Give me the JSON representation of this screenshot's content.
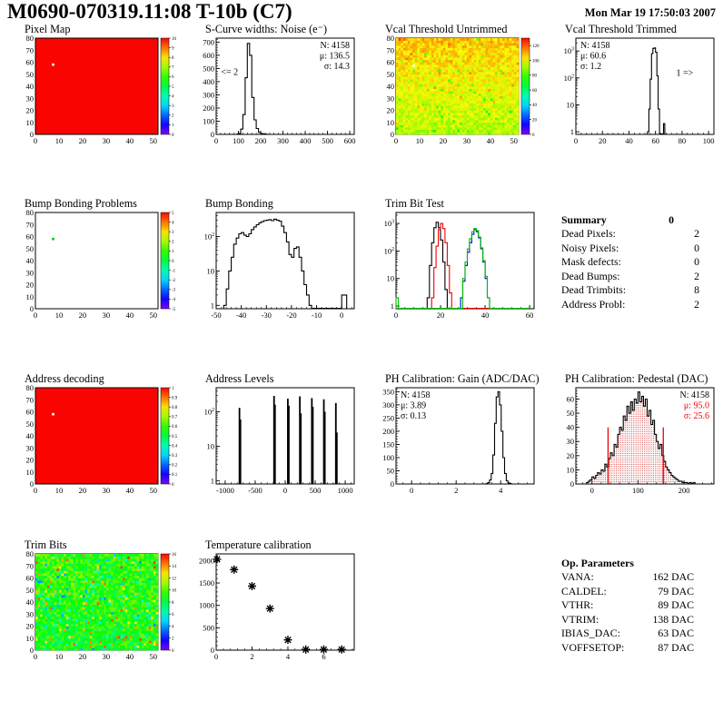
{
  "header": {
    "title": "M0690-070319.11:08 T-10b (C7)",
    "date": "Mon Mar 19 17:50:03 2007"
  },
  "summary": {
    "title": "Summary",
    "value": "0",
    "rows": [
      {
        "label": "Dead Pixels:",
        "value": "2"
      },
      {
        "label": "Noisy Pixels:",
        "value": "0"
      },
      {
        "label": "Mask defects:",
        "value": "0"
      },
      {
        "label": "Dead Bumps:",
        "value": "2"
      },
      {
        "label": "Dead Trimbits:",
        "value": "8"
      },
      {
        "label": "Address Probl:",
        "value": "2"
      }
    ]
  },
  "op_parameters": {
    "title": "Op. Parameters",
    "rows": [
      {
        "label": "VANA:",
        "value": "162 DAC"
      },
      {
        "label": "CALDEL:",
        "value": "79 DAC"
      },
      {
        "label": "VTHR:",
        "value": "89 DAC"
      },
      {
        "label": "VTRIM:",
        "value": "138 DAC"
      },
      {
        "label": "IBIAS_DAC:",
        "value": "63 DAC"
      },
      {
        "label": "VOFFSETOP:",
        "value": "87 DAC"
      }
    ]
  },
  "chart_data": [
    {
      "id": "pixel-map",
      "type": "heatmap",
      "title": "Pixel Map",
      "xlim": [
        0,
        52
      ],
      "xticks": [
        0,
        10,
        20,
        30,
        40,
        50
      ],
      "ylim": [
        0,
        80
      ],
      "yticks": [
        0,
        10,
        20,
        30,
        40,
        50,
        60,
        70,
        80
      ],
      "zlim": [
        0,
        10
      ],
      "solid_color": "#f90400",
      "dots": [
        {
          "x": 7,
          "y": 57,
          "color": "#ffffff"
        }
      ],
      "colorbar": {
        "min": 0,
        "max": 10,
        "labels": [
          [
            0,
            "0"
          ],
          [
            1,
            "1"
          ],
          [
            2,
            "2"
          ],
          [
            3,
            "3"
          ],
          [
            4,
            "4"
          ],
          [
            5,
            "5"
          ],
          [
            6,
            "6"
          ],
          [
            7,
            "7"
          ],
          [
            8,
            "8"
          ],
          [
            9,
            "9"
          ],
          [
            10,
            "10"
          ]
        ]
      }
    },
    {
      "id": "scurve-noise",
      "type": "hist",
      "title": "S-Curve widths: Noise (e⁻)",
      "xlim": [
        0,
        620
      ],
      "xticks": [
        0,
        100,
        200,
        300,
        400,
        500,
        600
      ],
      "ylim": [
        0,
        730
      ],
      "yticks": [
        0,
        100,
        200,
        300,
        400,
        500,
        600,
        700
      ],
      "series": [
        {
          "color": "#000000",
          "start": 90,
          "binWidth": 10,
          "counts": [
            2,
            6,
            40,
            150,
            430,
            690,
            600,
            280,
            110,
            45,
            15,
            6,
            3,
            2
          ]
        }
      ],
      "stats": {
        "side": "right",
        "lines": [
          {
            "t": "N: 4158",
            "c": "#000000"
          },
          {
            "t": "μ: 136.5",
            "c": "#000000"
          },
          {
            "t": "σ: 14.3",
            "c": "#000000"
          }
        ]
      },
      "annotations": [
        {
          "t": "<= 2",
          "x": 60,
          "y": 450
        }
      ]
    },
    {
      "id": "vcal-untrimmed",
      "type": "heatmap",
      "title": "Vcal Threshold Untrimmed",
      "xlim": [
        0,
        52
      ],
      "xticks": [
        0,
        10,
        20,
        30,
        40,
        50
      ],
      "ylim": [
        0,
        80
      ],
      "yticks": [
        0,
        10,
        20,
        30,
        40,
        50,
        60,
        70,
        80
      ],
      "zlim": [
        0,
        130
      ],
      "noise": {
        "seed": 42,
        "cols": 52,
        "rows": 40,
        "base": 92,
        "grad": 16,
        "amp": 14,
        "outlier_p": 0.03,
        "outlier_lo": -18,
        "outlier_hi": 8
      },
      "dots": [
        {
          "x": 7,
          "y": 56,
          "color": "#ffffff"
        }
      ],
      "colorbar": {
        "min": 0,
        "max": 130,
        "labels": [
          [
            0,
            "0"
          ],
          [
            20,
            "20"
          ],
          [
            40,
            "40"
          ],
          [
            60,
            "60"
          ],
          [
            80,
            "80"
          ],
          [
            100,
            "100"
          ],
          [
            120,
            "120"
          ]
        ]
      }
    },
    {
      "id": "vcal-trimmed",
      "type": "hist",
      "title": "Vcal Threshold Trimmed",
      "xlim": [
        0,
        104
      ],
      "xticks": [
        0,
        20,
        40,
        60,
        80,
        100
      ],
      "ylog": true,
      "ylim": [
        0.8,
        3000
      ],
      "ydecades": [
        1,
        10,
        100,
        1000
      ],
      "series": [
        {
          "color": "#000000",
          "start": 54,
          "binWidth": 1,
          "counts": [
            1,
            7,
            90,
            800,
            1250,
            1300,
            900,
            120,
            7,
            0,
            0,
            0,
            2
          ]
        }
      ],
      "stats": {
        "side": "left",
        "lines": [
          {
            "t": "N: 4158",
            "c": "#000000"
          },
          {
            "t": "μ: 60.6",
            "c": "#000000"
          },
          {
            "t": "σ:  1.2",
            "c": "#000000"
          }
        ]
      },
      "annotations": [
        {
          "t": "1 =>",
          "x": 82,
          "y": 120
        }
      ]
    },
    {
      "id": "bump-bonding-problems",
      "type": "heatmap",
      "title": "Bump Bonding Problems",
      "xlim": [
        0,
        52
      ],
      "xticks": [
        0,
        10,
        20,
        30,
        40,
        50
      ],
      "ylim": [
        0,
        80
      ],
      "yticks": [
        0,
        10,
        20,
        30,
        40,
        50,
        60,
        70,
        80
      ],
      "zlim": [
        -5,
        5
      ],
      "solid_color": "#ffffff",
      "dots": [
        {
          "x": 7,
          "y": 57,
          "color": "#00c400"
        }
      ],
      "colorbar": {
        "min": -5,
        "max": 5,
        "labels": [
          [
            -5,
            "-5"
          ],
          [
            -4,
            "-4"
          ],
          [
            -3,
            "-3"
          ],
          [
            -2,
            "-2"
          ],
          [
            -1,
            "-1"
          ],
          [
            0,
            "0"
          ],
          [
            1,
            "1"
          ],
          [
            2,
            "2"
          ],
          [
            3,
            "3"
          ],
          [
            4,
            "4"
          ],
          [
            5,
            "5"
          ]
        ]
      }
    },
    {
      "id": "bump-bonding",
      "type": "hist",
      "title": "Bump Bonding",
      "xlim": [
        -50,
        5
      ],
      "xticks": [
        -50,
        -40,
        -30,
        -20,
        -10,
        0
      ],
      "ylog": true,
      "ylim": [
        0.8,
        500
      ],
      "ydecades": [
        1,
        10,
        100
      ],
      "series": [
        {
          "color": "#000000",
          "start": -47,
          "binWidth": 1,
          "counts": [
            1,
            3,
            10,
            25,
            60,
            90,
            120,
            130,
            110,
            100,
            120,
            160,
            190,
            220,
            250,
            270,
            290,
            300,
            310,
            290,
            320,
            300,
            280,
            200,
            130,
            70,
            30,
            25,
            45,
            50,
            25,
            10,
            4,
            2,
            1,
            0,
            0,
            0,
            0,
            0,
            0,
            0,
            0,
            0,
            0,
            0,
            0,
            2,
            2
          ]
        }
      ]
    },
    {
      "id": "trim-bit-test",
      "type": "hist",
      "title": "Trim Bit Test",
      "xlim": [
        0,
        62
      ],
      "xticks": [
        0,
        20,
        40,
        60
      ],
      "ylog": true,
      "ylim": [
        0.8,
        2500
      ],
      "ydecades": [
        1,
        10,
        100,
        1000
      ],
      "series": [
        {
          "color": "#000000",
          "start": 14,
          "binWidth": 1,
          "counts": [
            2,
            30,
            200,
            700,
            1100,
            700,
            250,
            40,
            4
          ]
        },
        {
          "color": "#ee0000",
          "start": 16,
          "binWidth": 1,
          "counts": [
            2,
            25,
            150,
            600,
            1000,
            650,
            200,
            30,
            3,
            0,
            0,
            0,
            0,
            0,
            0,
            0,
            0,
            0,
            0,
            0,
            0,
            0,
            0,
            0,
            0,
            0,
            0,
            0,
            0,
            0,
            0,
            0,
            0,
            0,
            0,
            0,
            0,
            0,
            0,
            0,
            0,
            0,
            0,
            0
          ]
        },
        {
          "color": "#0000ee",
          "start": 29,
          "binWidth": 1,
          "counts": [
            2,
            8,
            30,
            90,
            200,
            400,
            600,
            500,
            300,
            120,
            40,
            10,
            2
          ]
        },
        {
          "color": "#00bb00",
          "start": 0,
          "binWidth": 1,
          "counts": [
            2,
            0,
            0,
            0,
            0,
            0,
            0,
            0,
            0,
            0,
            0,
            0,
            0,
            0,
            0,
            0,
            0,
            0,
            0,
            0,
            0,
            0,
            0,
            0,
            0,
            0,
            0,
            0,
            0,
            0,
            10,
            40,
            120,
            280,
            500,
            650,
            550,
            320,
            130,
            45,
            12,
            2,
            0,
            0,
            0,
            0,
            0,
            0,
            0,
            0,
            0,
            0,
            0,
            0,
            0,
            0,
            0,
            0,
            0,
            0
          ]
        }
      ]
    },
    {
      "id": "address-decoding",
      "type": "heatmap",
      "title": "Address decoding",
      "xlim": [
        0,
        52
      ],
      "xticks": [
        0,
        10,
        20,
        30,
        40,
        50
      ],
      "ylim": [
        0,
        80
      ],
      "yticks": [
        0,
        10,
        20,
        30,
        40,
        50,
        60,
        70,
        80
      ],
      "zlim": [
        0,
        1
      ],
      "solid_color": "#f90400",
      "dots": [
        {
          "x": 7,
          "y": 57,
          "color": "#ffffff"
        }
      ],
      "colorbar": {
        "min": 0,
        "max": 1,
        "labels": [
          [
            0,
            "0"
          ],
          [
            0.1,
            "0.1"
          ],
          [
            0.2,
            "0.2"
          ],
          [
            0.3,
            "0.3"
          ],
          [
            0.4,
            "0.4"
          ],
          [
            0.5,
            "0.5"
          ],
          [
            0.6,
            "0.6"
          ],
          [
            0.7,
            "0.7"
          ],
          [
            0.8,
            "0.8"
          ],
          [
            0.9,
            "0.9"
          ],
          [
            1,
            "1"
          ]
        ]
      }
    },
    {
      "id": "address-levels",
      "type": "bars",
      "title": "Address Levels",
      "xlim": [
        -1150,
        1150
      ],
      "xticks": [
        -1000,
        -500,
        0,
        500,
        1000
      ],
      "ylog": true,
      "ylim": [
        0.8,
        500
      ],
      "ydecades": [
        1,
        10,
        100
      ],
      "bars": [
        [
          -762,
          130
        ],
        [
          -746,
          60
        ],
        [
          -186,
          290
        ],
        [
          -170,
          160
        ],
        [
          44,
          240
        ],
        [
          60,
          150
        ],
        [
          244,
          280
        ],
        [
          260,
          90
        ],
        [
          444,
          250
        ],
        [
          460,
          140
        ],
        [
          644,
          230
        ],
        [
          660,
          100
        ],
        [
          844,
          180
        ],
        [
          860,
          25
        ]
      ]
    },
    {
      "id": "ph-gain",
      "type": "hist",
      "title": "PH Calibration: Gain (ADC/DAC)",
      "xlim": [
        -0.7,
        5.5
      ],
      "xticks": [
        0,
        2,
        4
      ],
      "ylim": [
        0,
        365
      ],
      "yticks": [
        0,
        50,
        100,
        150,
        200,
        250,
        300,
        350
      ],
      "series": [
        {
          "color": "#000000",
          "start": 3.35,
          "binWidth": 0.075,
          "counts": [
            2,
            5,
            15,
            40,
            110,
            230,
            330,
            350,
            300,
            200,
            100,
            40,
            12,
            4,
            2
          ]
        }
      ],
      "stats": {
        "side": "left",
        "lines": [
          {
            "t": "N: 4158",
            "c": "#000000"
          },
          {
            "t": "μ: 3.89",
            "c": "#000000"
          },
          {
            "t": "σ: 0.13",
            "c": "#000000"
          }
        ]
      }
    },
    {
      "id": "ph-pedestal",
      "type": "hist",
      "title": "PH Calibration: Pedestal (DAC)",
      "xlim": [
        -35,
        265
      ],
      "xticks": [
        0,
        100,
        200
      ],
      "ylim": [
        0,
        68
      ],
      "yticks": [
        0,
        10,
        20,
        30,
        40,
        50,
        60
      ],
      "fill": "dots",
      "series": [
        {
          "color": "#000000",
          "start": -12,
          "binWidth": 4,
          "counts": [
            1,
            2,
            3,
            5,
            4,
            6,
            8,
            7,
            10,
            9,
            14,
            12,
            18,
            22,
            20,
            28,
            26,
            35,
            40,
            38,
            48,
            45,
            55,
            50,
            58,
            52,
            60,
            57,
            65,
            58,
            62,
            55,
            60,
            48,
            52,
            42,
            45,
            35,
            30,
            25,
            28,
            20,
            16,
            12,
            10,
            8,
            6,
            5,
            4,
            3,
            2,
            2,
            1,
            1,
            1,
            0,
            1,
            0,
            1
          ]
        }
      ],
      "vlines": [
        {
          "x": 35,
          "y2": 40,
          "color": "#ee0000"
        },
        {
          "x": 155,
          "y2": 40,
          "color": "#ee0000"
        }
      ],
      "stats": {
        "side": "right",
        "lines": [
          {
            "t": "N: 4158",
            "c": "#000000"
          },
          {
            "t": "μ: 95.0",
            "c": "#ee0000"
          },
          {
            "t": "σ: 25.6",
            "c": "#ee0000"
          }
        ]
      }
    },
    {
      "id": "trim-bits",
      "type": "heatmap",
      "title": "Trim Bits",
      "xlim": [
        0,
        52
      ],
      "xticks": [
        0,
        10,
        20,
        30,
        40,
        50
      ],
      "ylim": [
        0,
        80
      ],
      "yticks": [
        0,
        10,
        20,
        30,
        40,
        50,
        60,
        70,
        80
      ],
      "zlim": [
        0,
        16
      ],
      "noise": {
        "seed": 7,
        "cols": 52,
        "rows": 40,
        "base": 8.8,
        "grad": 0.6,
        "amp": 3.2,
        "outlier_p": 0.05,
        "outlier_lo": -4,
        "outlier_hi": 4.5
      },
      "dots": [],
      "colorbar": {
        "min": 0,
        "max": 16,
        "labels": [
          [
            0,
            "0"
          ],
          [
            2,
            "2"
          ],
          [
            4,
            "4"
          ],
          [
            6,
            "6"
          ],
          [
            8,
            "8"
          ],
          [
            10,
            "10"
          ],
          [
            12,
            "12"
          ],
          [
            14,
            "14"
          ],
          [
            16,
            "16"
          ]
        ]
      }
    },
    {
      "id": "temperature",
      "type": "scatter",
      "title": "Temperature calibration",
      "xlim": [
        0,
        7.7
      ],
      "xticks": [
        0,
        2,
        4,
        6
      ],
      "ylim": [
        0,
        2150
      ],
      "yticks": [
        0,
        500,
        1000,
        1500,
        2000
      ],
      "points": [
        [
          0.05,
          2030
        ],
        [
          1,
          1800
        ],
        [
          2,
          1430
        ],
        [
          3,
          930
        ],
        [
          4,
          230
        ],
        [
          5,
          15
        ],
        [
          6,
          15
        ],
        [
          7,
          15
        ]
      ]
    }
  ]
}
